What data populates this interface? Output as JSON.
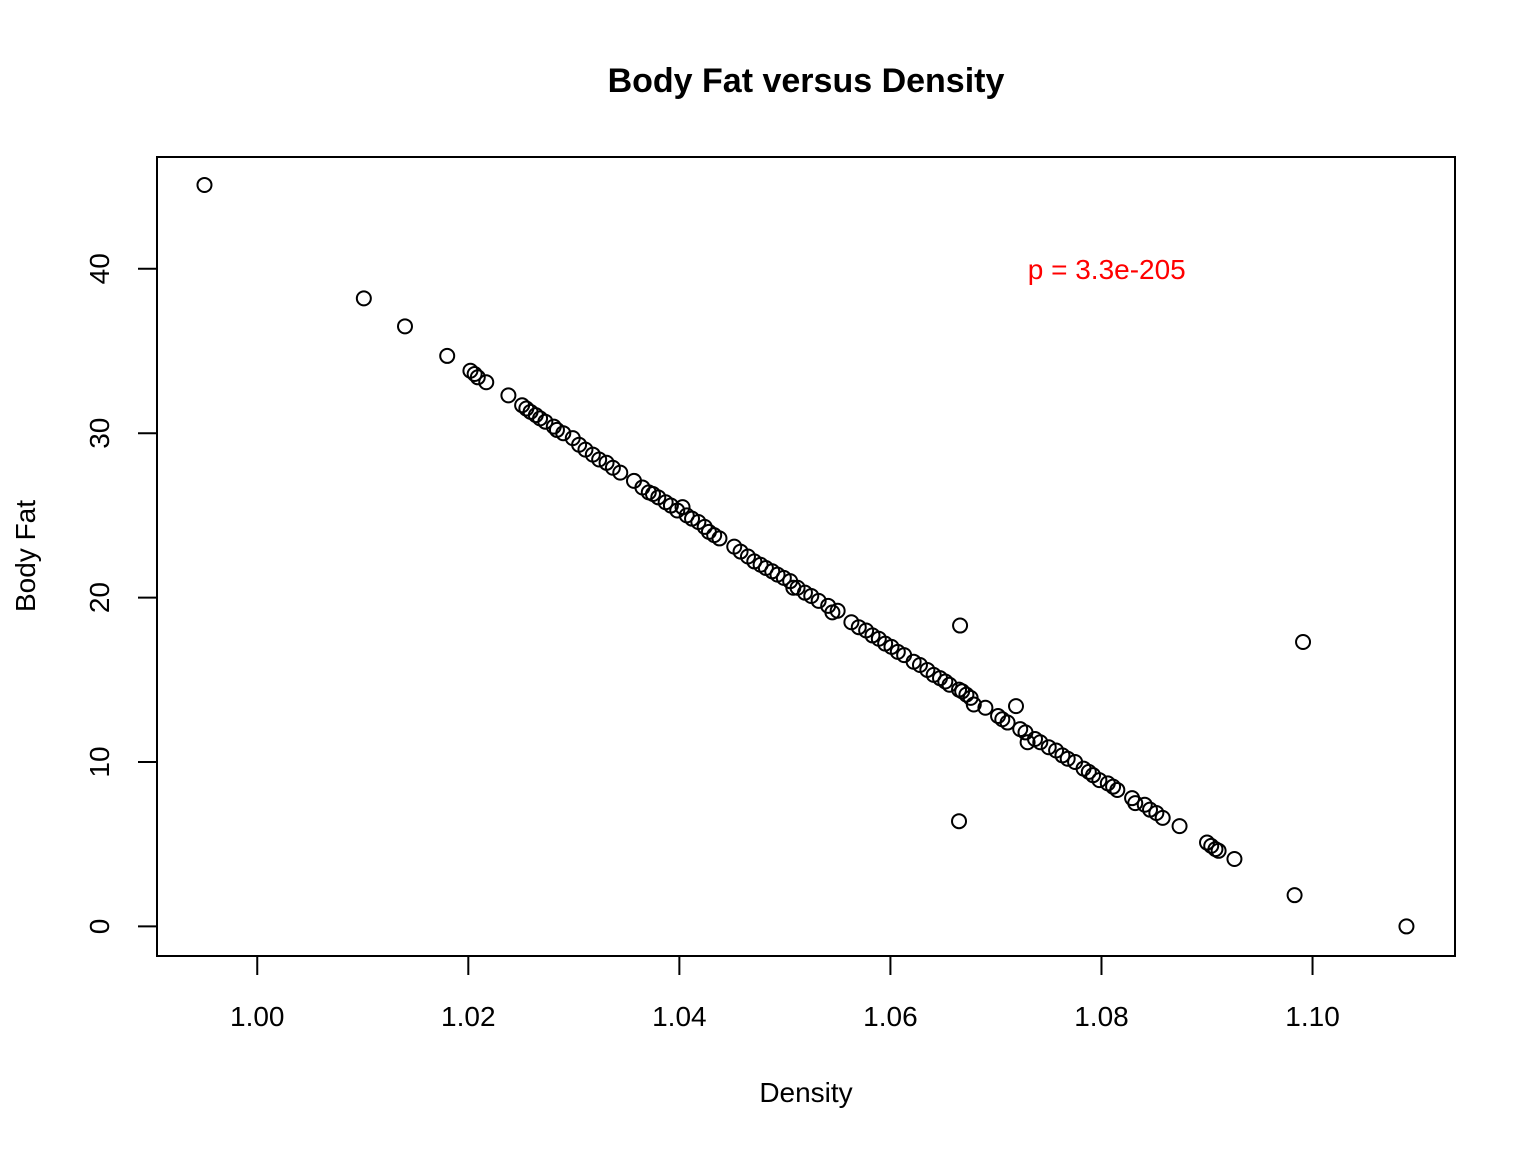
{
  "chart_data": {
    "type": "scatter",
    "title": "Body Fat versus Density",
    "xlabel": "Density",
    "ylabel": "Body Fat",
    "xlim": [
      0.9905,
      1.1135
    ],
    "ylim": [
      -1.8,
      46.8
    ],
    "xticks": [
      1.0,
      1.02,
      1.04,
      1.06,
      1.08,
      1.1
    ],
    "xtick_labels": [
      "1.00",
      "1.02",
      "1.04",
      "1.06",
      "1.08",
      "1.10"
    ],
    "yticks": [
      0,
      10,
      20,
      30,
      40
    ],
    "ytick_labels": [
      "0",
      "10",
      "20",
      "30",
      "40"
    ],
    "grid": false,
    "annotation": {
      "text": "p =  3.3e-205",
      "x": 1.0805,
      "y": 40,
      "color": "#ff0000"
    },
    "points": [
      [
        0.995,
        45.1
      ],
      [
        1.0101,
        38.2
      ],
      [
        1.014,
        36.5
      ],
      [
        1.018,
        34.7
      ],
      [
        1.0202,
        33.8
      ],
      [
        1.0206,
        33.6
      ],
      [
        1.0209,
        33.4
      ],
      [
        1.0217,
        33.1
      ],
      [
        1.0238,
        32.3
      ],
      [
        1.0251,
        31.7
      ],
      [
        1.0255,
        31.5
      ],
      [
        1.0259,
        31.3
      ],
      [
        1.0264,
        31.1
      ],
      [
        1.0268,
        30.9
      ],
      [
        1.0273,
        30.7
      ],
      [
        1.0281,
        30.4
      ],
      [
        1.0284,
        30.2
      ],
      [
        1.029,
        30.0
      ],
      [
        1.0299,
        29.7
      ],
      [
        1.0305,
        29.3
      ],
      [
        1.0311,
        29.0
      ],
      [
        1.0318,
        28.7
      ],
      [
        1.0324,
        28.4
      ],
      [
        1.0331,
        28.2
      ],
      [
        1.0337,
        27.9
      ],
      [
        1.0344,
        27.6
      ],
      [
        1.0357,
        27.1
      ],
      [
        1.0365,
        26.7
      ],
      [
        1.0371,
        26.4
      ],
      [
        1.0375,
        26.3
      ],
      [
        1.038,
        26.1
      ],
      [
        1.0387,
        25.8
      ],
      [
        1.0392,
        25.6
      ],
      [
        1.0398,
        25.3
      ],
      [
        1.0403,
        25.5
      ],
      [
        1.0407,
        25.0
      ],
      [
        1.0412,
        24.8
      ],
      [
        1.0418,
        24.6
      ],
      [
        1.0424,
        24.3
      ],
      [
        1.0428,
        24.0
      ],
      [
        1.0433,
        23.8
      ],
      [
        1.0438,
        23.6
      ],
      [
        1.0452,
        23.1
      ],
      [
        1.0458,
        22.8
      ],
      [
        1.0465,
        22.5
      ],
      [
        1.0471,
        22.2
      ],
      [
        1.0477,
        22.0
      ],
      [
        1.0482,
        21.8
      ],
      [
        1.0488,
        21.6
      ],
      [
        1.0493,
        21.4
      ],
      [
        1.0499,
        21.2
      ],
      [
        1.0505,
        21.0
      ],
      [
        1.0508,
        20.6
      ],
      [
        1.0512,
        20.6
      ],
      [
        1.0519,
        20.3
      ],
      [
        1.0525,
        20.1
      ],
      [
        1.0532,
        19.8
      ],
      [
        1.0541,
        19.5
      ],
      [
        1.0545,
        19.1
      ],
      [
        1.055,
        19.2
      ],
      [
        1.0563,
        18.5
      ],
      [
        1.057,
        18.2
      ],
      [
        1.0577,
        18.0
      ],
      [
        1.0583,
        17.7
      ],
      [
        1.0589,
        17.5
      ],
      [
        1.0595,
        17.2
      ],
      [
        1.0601,
        17.0
      ],
      [
        1.0607,
        16.7
      ],
      [
        1.0613,
        16.5
      ],
      [
        1.0622,
        16.1
      ],
      [
        1.0628,
        15.9
      ],
      [
        1.0635,
        15.6
      ],
      [
        1.0641,
        15.3
      ],
      [
        1.0647,
        15.1
      ],
      [
        1.0652,
        14.9
      ],
      [
        1.0656,
        14.7
      ],
      [
        1.0665,
        14.4
      ],
      [
        1.0668,
        14.3
      ],
      [
        1.0672,
        14.1
      ],
      [
        1.0676,
        13.9
      ],
      [
        1.0679,
        13.5
      ],
      [
        1.0666,
        18.3
      ],
      [
        1.0665,
        6.4
      ],
      [
        1.069,
        13.3
      ],
      [
        1.0702,
        12.8
      ],
      [
        1.0706,
        12.6
      ],
      [
        1.0711,
        12.4
      ],
      [
        1.0719,
        13.4
      ],
      [
        1.0723,
        12.0
      ],
      [
        1.0728,
        11.8
      ],
      [
        1.073,
        11.2
      ],
      [
        1.0737,
        11.4
      ],
      [
        1.0742,
        11.2
      ],
      [
        1.075,
        10.9
      ],
      [
        1.0757,
        10.7
      ],
      [
        1.0763,
        10.4
      ],
      [
        1.0768,
        10.2
      ],
      [
        1.0775,
        10.0
      ],
      [
        1.0783,
        9.6
      ],
      [
        1.0788,
        9.4
      ],
      [
        1.0792,
        9.2
      ],
      [
        1.0798,
        8.9
      ],
      [
        1.0806,
        8.7
      ],
      [
        1.0811,
        8.5
      ],
      [
        1.0815,
        8.3
      ],
      [
        1.0829,
        7.8
      ],
      [
        1.0832,
        7.5
      ],
      [
        1.0841,
        7.4
      ],
      [
        1.0846,
        7.1
      ],
      [
        1.0852,
        6.9
      ],
      [
        1.0858,
        6.6
      ],
      [
        1.0874,
        6.1
      ],
      [
        1.09,
        5.1
      ],
      [
        1.0904,
        4.9
      ],
      [
        1.0908,
        4.7
      ],
      [
        1.0911,
        4.6
      ],
      [
        1.0926,
        4.1
      ],
      [
        1.0983,
        1.9
      ],
      [
        1.0991,
        17.3
      ],
      [
        1.1089,
        0.0
      ]
    ]
  }
}
